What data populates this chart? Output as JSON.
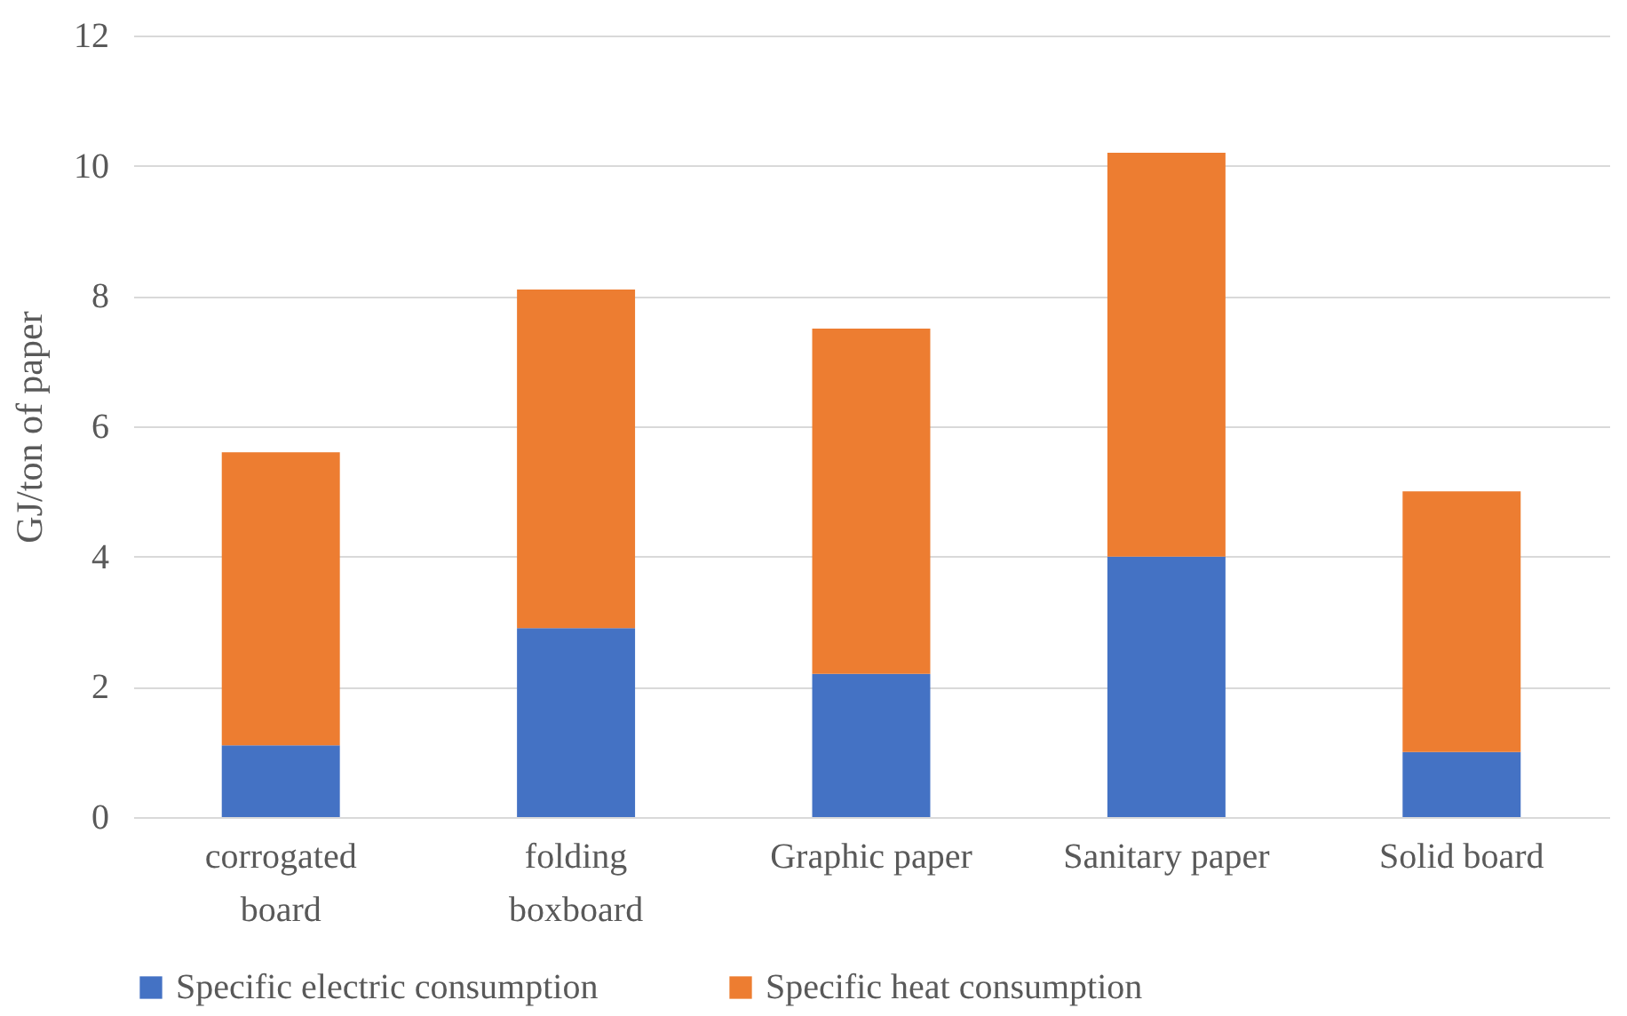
{
  "chart_data": {
    "type": "bar",
    "stacked": true,
    "ylabel": "GJ/ton of paper",
    "categories": [
      "corrogated board",
      "folding boxboard",
      "Graphic paper",
      "Sanitary paper",
      "Solid board"
    ],
    "series": [
      {
        "name": "Specific electric consumption",
        "color": "#4472c4",
        "values": [
          1.1,
          2.9,
          2.2,
          4.0,
          1.0
        ]
      },
      {
        "name": "Specific heat consumption",
        "color": "#ed7d31",
        "values": [
          4.5,
          5.2,
          5.3,
          6.2,
          4.0
        ]
      }
    ],
    "ylim": [
      0,
      12
    ],
    "yticks": [
      0,
      2,
      4,
      6,
      8,
      10,
      12
    ],
    "grid": "y",
    "legend": "bottom"
  }
}
